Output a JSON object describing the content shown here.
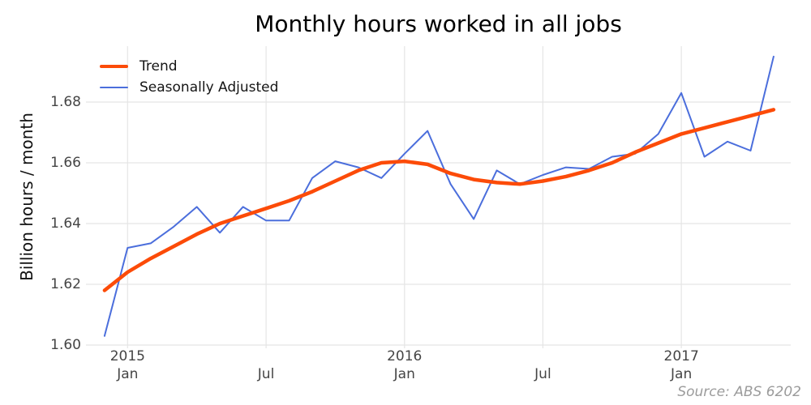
{
  "chart_data": {
    "type": "line",
    "title": "Monthly hours worked in all jobs",
    "ylabel": "Billion hours / month",
    "xlabel": "",
    "source": "Source: ABS 6202",
    "legend_position": "top-left",
    "grid": true,
    "grid_color": "#e5e5e5",
    "background": "#ffffff",
    "ylim": [
      1.598,
      1.699
    ],
    "y_ticks": [
      {
        "label": "1.60",
        "value": 1.6
      },
      {
        "label": "1.62",
        "value": 1.62
      },
      {
        "label": "1.64",
        "value": 1.64
      },
      {
        "label": "1.66",
        "value": 1.66
      },
      {
        "label": "1.68",
        "value": 1.68
      }
    ],
    "x": [
      "Dec 2014",
      "Jan 2015",
      "Feb 2015",
      "Mar 2015",
      "Apr 2015",
      "May 2015",
      "Jun 2015",
      "Jul 2015",
      "Aug 2015",
      "Sep 2015",
      "Oct 2015",
      "Nov 2015",
      "Dec 2015",
      "Jan 2016",
      "Feb 2016",
      "Mar 2016",
      "Apr 2016",
      "May 2016",
      "Jun 2016",
      "Jul 2016",
      "Aug 2016",
      "Sep 2016",
      "Oct 2016",
      "Nov 2016",
      "Dec 2016",
      "Jan 2017",
      "Feb 2017",
      "Mar 2017",
      "Apr 2017",
      "May 2017"
    ],
    "x_ticks": [
      {
        "index": 1,
        "month": "Jan",
        "year": "2015"
      },
      {
        "index": 7,
        "month": "Jul"
      },
      {
        "index": 13,
        "month": "Jan",
        "year": "2016"
      },
      {
        "index": 19,
        "month": "Jul"
      },
      {
        "index": 25,
        "month": "Jan",
        "year": "2017"
      }
    ],
    "series": [
      {
        "name": "Trend",
        "color": "#fc4b08",
        "stroke_width": 4.5,
        "values": [
          1.618,
          1.624,
          1.6285,
          1.6325,
          1.6365,
          1.64,
          1.6425,
          1.645,
          1.6475,
          1.6505,
          1.654,
          1.6575,
          1.66,
          1.6605,
          1.6595,
          1.6565,
          1.6545,
          1.6535,
          1.653,
          1.654,
          1.6555,
          1.6575,
          1.66,
          1.6635,
          1.6665,
          1.6695,
          1.6715,
          1.6735,
          1.6755,
          1.6775
        ]
      },
      {
        "name": "Seasonally Adjusted",
        "color": "#4b6edc",
        "stroke_width": 2,
        "values": [
          1.603,
          1.632,
          1.6335,
          1.639,
          1.6455,
          1.637,
          1.6455,
          1.641,
          1.641,
          1.655,
          1.6605,
          1.6585,
          1.655,
          1.663,
          1.6705,
          1.653,
          1.6415,
          1.6575,
          1.653,
          1.656,
          1.6585,
          1.658,
          1.662,
          1.663,
          1.6695,
          1.683,
          1.662,
          1.667,
          1.664,
          1.695
        ]
      }
    ]
  }
}
